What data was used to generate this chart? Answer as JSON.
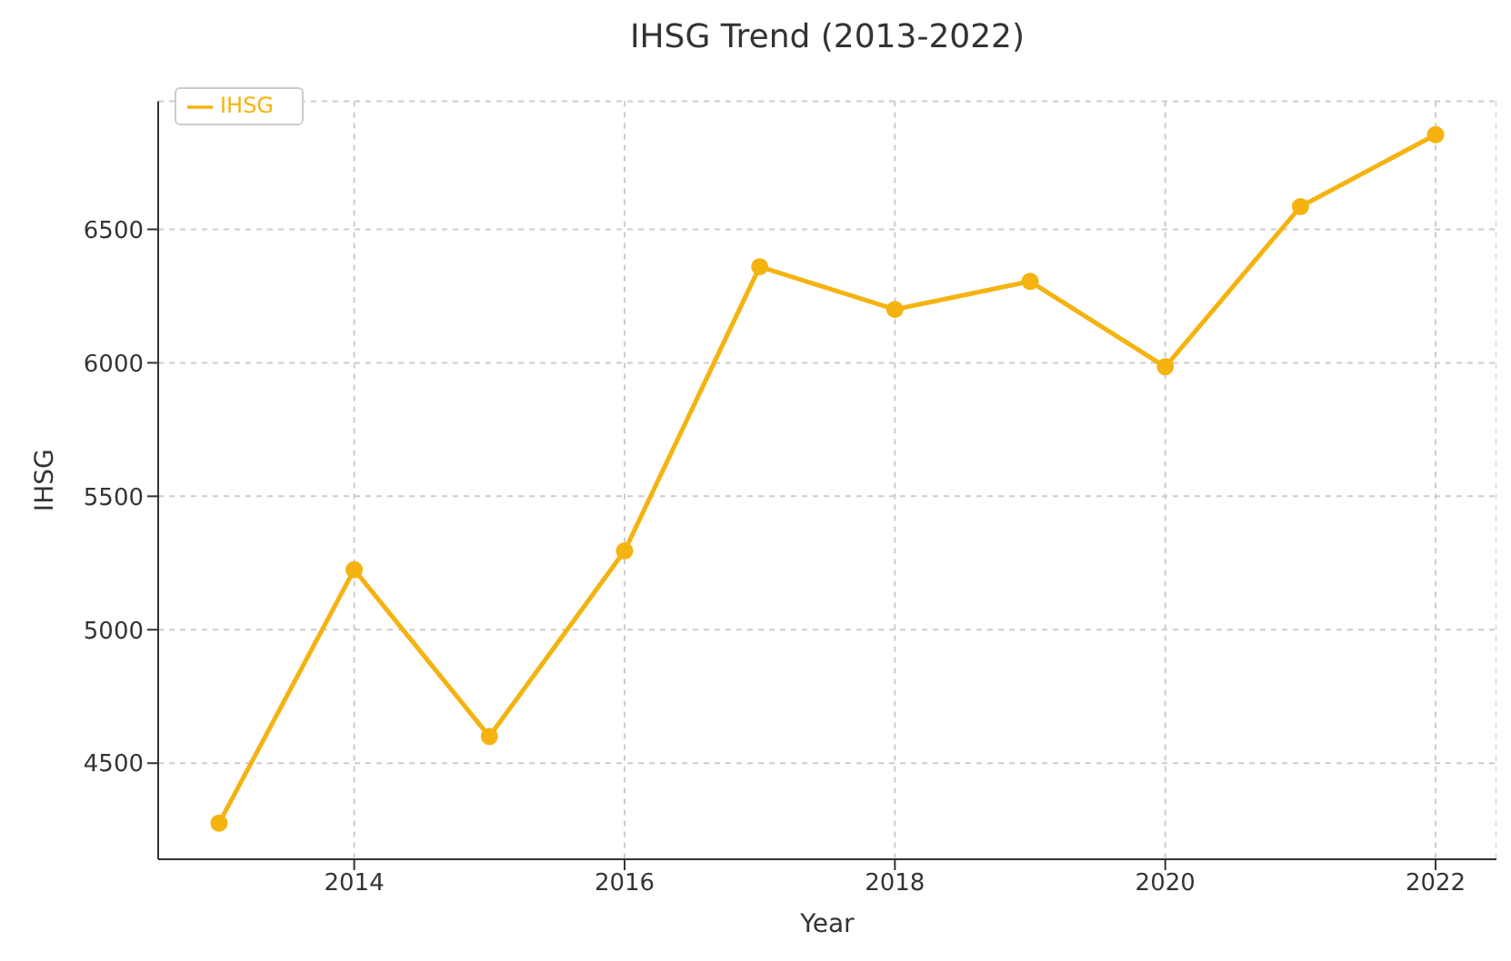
{
  "chart_data": {
    "type": "line",
    "title": "IHSG Trend (2013-2022)",
    "xlabel": "Year",
    "ylabel": "IHSG",
    "x": [
      2013,
      2014,
      2015,
      2016,
      2017,
      2018,
      2019,
      2020,
      2021,
      2022
    ],
    "series": [
      {
        "name": "IHSG",
        "color": "#f5b30f",
        "values": [
          4275,
          5225,
          4600,
          5295,
          6360,
          6200,
          6305,
          5985,
          6585,
          6855
        ]
      }
    ],
    "xlim": [
      2012.55,
      2022.45
    ],
    "xticks": [
      2014,
      2016,
      2018,
      2020,
      2022
    ],
    "ylim": [
      4140,
      6980
    ],
    "yticks": [
      4500,
      5000,
      5500,
      6000,
      6500
    ],
    "grid": true,
    "legend": "top left",
    "marker": "circle",
    "line_style": "solid"
  }
}
